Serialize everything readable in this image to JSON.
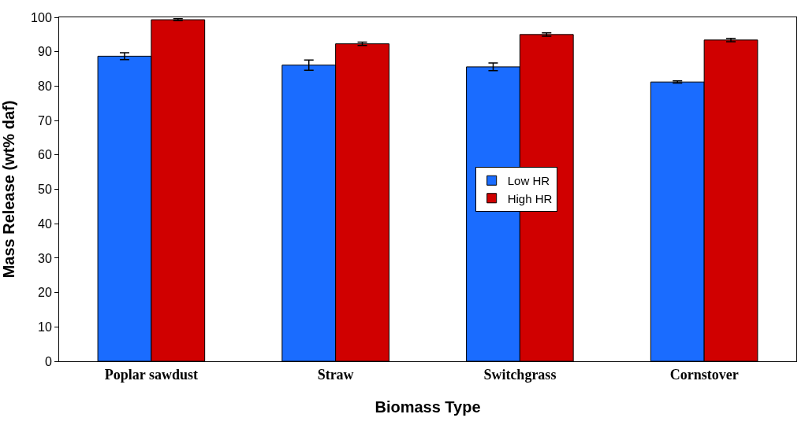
{
  "chart_data": {
    "type": "bar",
    "xlabel": "Biomass Type",
    "ylabel": "Mass Release (wt% daf)",
    "categories": [
      "Poplar sawdust",
      "Straw",
      "Switchgrass",
      "Cornstover"
    ],
    "series": [
      {
        "name": "Low HR",
        "color": "#1a6cff",
        "values": [
          88.7,
          86.1,
          85.6,
          81.2
        ],
        "errors": [
          1.0,
          1.5,
          1.1,
          0.3
        ]
      },
      {
        "name": "High HR",
        "color": "#d00000",
        "values": [
          99.3,
          92.3,
          95.0,
          93.4
        ],
        "errors": [
          0.3,
          0.5,
          0.5,
          0.5
        ]
      }
    ],
    "ylim": [
      0,
      100
    ],
    "yticks": [
      0,
      10,
      20,
      30,
      40,
      50,
      60,
      70,
      80,
      90,
      100
    ],
    "legend": "center"
  }
}
